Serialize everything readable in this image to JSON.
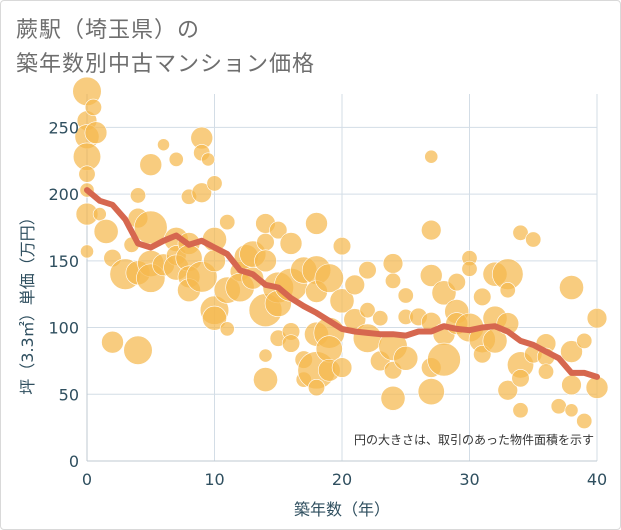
{
  "header": {
    "title_line1": "蕨駅（埼玉県）の",
    "title_line2": "築年数別中古マンション価格"
  },
  "colors": {
    "bubble": "#f5b84e",
    "trend_line": "#d6674f",
    "grid": "#d3dde6",
    "axis_text": "#2f4f5f"
  },
  "chart_data": {
    "type": "scatter",
    "title": "蕨駅（埼玉県）の築年数別中古マンション価格",
    "xlabel": "築年数（年）",
    "ylabel": "坪（3.3㎡）単価（万円）",
    "xlim": [
      0,
      40
    ],
    "ylim": [
      0,
      275
    ],
    "x_ticks": [
      "0",
      "10",
      "20",
      "30",
      "40"
    ],
    "y_ticks": [
      "0",
      "50",
      "100",
      "150",
      "200",
      "250"
    ],
    "grid": true,
    "annotation": "円の大きさは、取引のあった物件面積を示す",
    "trend": {
      "x": [
        0,
        1,
        2,
        3,
        4,
        5,
        6,
        7,
        8,
        9,
        10,
        11,
        12,
        13,
        14,
        15,
        16,
        17,
        18,
        19,
        20,
        21,
        22,
        23,
        24,
        25,
        26,
        27,
        28,
        29,
        30,
        31,
        32,
        33,
        34,
        35,
        36,
        37,
        38,
        39,
        40
      ],
      "y": [
        203,
        195,
        192,
        181,
        163,
        160,
        165,
        169,
        162,
        165,
        160,
        155,
        143,
        140,
        132,
        130,
        122,
        116,
        111,
        105,
        99,
        97,
        96,
        95,
        95,
        94,
        97,
        97,
        101,
        99,
        98,
        100,
        101,
        97,
        90,
        87,
        82,
        77,
        66,
        66,
        63
      ]
    },
    "points": [
      {
        "x": 0,
        "y": 277,
        "s": 2.6
      },
      {
        "x": 0,
        "y": 255,
        "s": 1.8
      },
      {
        "x": 0,
        "y": 243,
        "s": 2.2
      },
      {
        "x": 0,
        "y": 228,
        "s": 2.5
      },
      {
        "x": 0,
        "y": 215,
        "s": 1.5
      },
      {
        "x": 0,
        "y": 203,
        "s": 1.3
      },
      {
        "x": 0,
        "y": 185,
        "s": 2.0
      },
      {
        "x": 0,
        "y": 157,
        "s": 1.2
      },
      {
        "x": 0.5,
        "y": 265,
        "s": 1.5
      },
      {
        "x": 0.7,
        "y": 246,
        "s": 2.0
      },
      {
        "x": 1,
        "y": 185,
        "s": 1.2
      },
      {
        "x": 1.5,
        "y": 172,
        "s": 2.2
      },
      {
        "x": 2,
        "y": 152,
        "s": 1.6
      },
      {
        "x": 2,
        "y": 89,
        "s": 2.0
      },
      {
        "x": 3,
        "y": 140,
        "s": 2.8
      },
      {
        "x": 3.5,
        "y": 162,
        "s": 1.4
      },
      {
        "x": 4,
        "y": 182,
        "s": 1.8
      },
      {
        "x": 4,
        "y": 199,
        "s": 1.4
      },
      {
        "x": 4,
        "y": 141,
        "s": 2.2
      },
      {
        "x": 4,
        "y": 83,
        "s": 2.6
      },
      {
        "x": 5,
        "y": 222,
        "s": 2.0
      },
      {
        "x": 5,
        "y": 175,
        "s": 3.0
      },
      {
        "x": 5,
        "y": 148,
        "s": 2.4
      },
      {
        "x": 5,
        "y": 137,
        "s": 2.6
      },
      {
        "x": 6,
        "y": 237,
        "s": 1.1
      },
      {
        "x": 6,
        "y": 147,
        "s": 2.0
      },
      {
        "x": 7,
        "y": 226,
        "s": 1.3
      },
      {
        "x": 7,
        "y": 166,
        "s": 2.2
      },
      {
        "x": 7,
        "y": 154,
        "s": 1.8
      },
      {
        "x": 7,
        "y": 145,
        "s": 2.3
      },
      {
        "x": 8,
        "y": 198,
        "s": 1.4
      },
      {
        "x": 8,
        "y": 163,
        "s": 2.0
      },
      {
        "x": 8,
        "y": 152,
        "s": 2.4
      },
      {
        "x": 8,
        "y": 138,
        "s": 2.0
      },
      {
        "x": 8,
        "y": 128,
        "s": 2.1
      },
      {
        "x": 9,
        "y": 242,
        "s": 2.0
      },
      {
        "x": 9,
        "y": 231,
        "s": 1.5
      },
      {
        "x": 9,
        "y": 201,
        "s": 1.8
      },
      {
        "x": 9,
        "y": 138,
        "s": 2.8
      },
      {
        "x": 9.5,
        "y": 226,
        "s": 1.2
      },
      {
        "x": 10,
        "y": 208,
        "s": 1.4
      },
      {
        "x": 10,
        "y": 166,
        "s": 2.2
      },
      {
        "x": 10,
        "y": 150,
        "s": 2.0
      },
      {
        "x": 10,
        "y": 113,
        "s": 2.6
      },
      {
        "x": 10,
        "y": 107,
        "s": 2.2
      },
      {
        "x": 11,
        "y": 179,
        "s": 1.4
      },
      {
        "x": 11,
        "y": 128,
        "s": 2.4
      },
      {
        "x": 11,
        "y": 99,
        "s": 1.3
      },
      {
        "x": 12,
        "y": 142,
        "s": 1.8
      },
      {
        "x": 12,
        "y": 130,
        "s": 2.6
      },
      {
        "x": 12.5,
        "y": 153,
        "s": 2.2
      },
      {
        "x": 13,
        "y": 155,
        "s": 2.4
      },
      {
        "x": 13,
        "y": 137,
        "s": 2.0
      },
      {
        "x": 14,
        "y": 178,
        "s": 1.8
      },
      {
        "x": 14,
        "y": 164,
        "s": 1.6
      },
      {
        "x": 14,
        "y": 150,
        "s": 2.0
      },
      {
        "x": 14,
        "y": 113,
        "s": 3.0
      },
      {
        "x": 14,
        "y": 79,
        "s": 1.2
      },
      {
        "x": 14,
        "y": 61,
        "s": 2.2
      },
      {
        "x": 15,
        "y": 173,
        "s": 1.6
      },
      {
        "x": 15,
        "y": 130,
        "s": 2.8
      },
      {
        "x": 15,
        "y": 118,
        "s": 2.4
      },
      {
        "x": 15,
        "y": 92,
        "s": 1.5
      },
      {
        "x": 16,
        "y": 163,
        "s": 2.0
      },
      {
        "x": 16,
        "y": 132,
        "s": 3.0
      },
      {
        "x": 16,
        "y": 97,
        "s": 1.6
      },
      {
        "x": 16,
        "y": 88,
        "s": 1.6
      },
      {
        "x": 17,
        "y": 143,
        "s": 2.4
      },
      {
        "x": 17,
        "y": 76,
        "s": 1.6
      },
      {
        "x": 17,
        "y": 61,
        "s": 1.4
      },
      {
        "x": 18,
        "y": 178,
        "s": 2.0
      },
      {
        "x": 18,
        "y": 143,
        "s": 2.6
      },
      {
        "x": 18,
        "y": 127,
        "s": 2.0
      },
      {
        "x": 18,
        "y": 95,
        "s": 2.2
      },
      {
        "x": 18,
        "y": 68,
        "s": 3.4
      },
      {
        "x": 18,
        "y": 55,
        "s": 1.5
      },
      {
        "x": 19,
        "y": 137,
        "s": 2.6
      },
      {
        "x": 19,
        "y": 96,
        "s": 2.8
      },
      {
        "x": 19,
        "y": 84,
        "s": 2.4
      },
      {
        "x": 19,
        "y": 68,
        "s": 2.0
      },
      {
        "x": 20,
        "y": 161,
        "s": 1.6
      },
      {
        "x": 20,
        "y": 120,
        "s": 2.2
      },
      {
        "x": 20,
        "y": 70,
        "s": 1.8
      },
      {
        "x": 21,
        "y": 132,
        "s": 1.8
      },
      {
        "x": 21,
        "y": 106,
        "s": 2.0
      },
      {
        "x": 22,
        "y": 143,
        "s": 1.6
      },
      {
        "x": 22,
        "y": 113,
        "s": 1.4
      },
      {
        "x": 22,
        "y": 92,
        "s": 2.6
      },
      {
        "x": 23,
        "y": 107,
        "s": 1.4
      },
      {
        "x": 23,
        "y": 75,
        "s": 1.8
      },
      {
        "x": 24,
        "y": 148,
        "s": 1.8
      },
      {
        "x": 24,
        "y": 135,
        "s": 1.4
      },
      {
        "x": 24,
        "y": 86,
        "s": 2.6
      },
      {
        "x": 24,
        "y": 68,
        "s": 1.6
      },
      {
        "x": 24,
        "y": 47,
        "s": 2.2
      },
      {
        "x": 25,
        "y": 124,
        "s": 1.4
      },
      {
        "x": 25,
        "y": 108,
        "s": 1.4
      },
      {
        "x": 25,
        "y": 77,
        "s": 2.2
      },
      {
        "x": 26,
        "y": 108,
        "s": 1.6
      },
      {
        "x": 27,
        "y": 228,
        "s": 1.2
      },
      {
        "x": 27,
        "y": 173,
        "s": 1.8
      },
      {
        "x": 27,
        "y": 139,
        "s": 2.0
      },
      {
        "x": 27,
        "y": 104,
        "s": 1.8
      },
      {
        "x": 27,
        "y": 70,
        "s": 1.8
      },
      {
        "x": 27,
        "y": 52,
        "s": 2.4
      },
      {
        "x": 28,
        "y": 126,
        "s": 2.2
      },
      {
        "x": 28,
        "y": 95,
        "s": 2.0
      },
      {
        "x": 28,
        "y": 76,
        "s": 3.0
      },
      {
        "x": 29,
        "y": 134,
        "s": 1.6
      },
      {
        "x": 29,
        "y": 112,
        "s": 2.2
      },
      {
        "x": 29,
        "y": 103,
        "s": 2.0
      },
      {
        "x": 30,
        "y": 152,
        "s": 1.4
      },
      {
        "x": 30,
        "y": 144,
        "s": 1.4
      },
      {
        "x": 30,
        "y": 100,
        "s": 2.6
      },
      {
        "x": 31,
        "y": 123,
        "s": 1.6
      },
      {
        "x": 31,
        "y": 91,
        "s": 2.4
      },
      {
        "x": 31,
        "y": 80,
        "s": 1.6
      },
      {
        "x": 32,
        "y": 140,
        "s": 2.2
      },
      {
        "x": 32,
        "y": 107,
        "s": 2.2
      },
      {
        "x": 32,
        "y": 90,
        "s": 2.2
      },
      {
        "x": 33,
        "y": 140,
        "s": 2.8
      },
      {
        "x": 33,
        "y": 128,
        "s": 1.4
      },
      {
        "x": 33,
        "y": 103,
        "s": 2.0
      },
      {
        "x": 33,
        "y": 53,
        "s": 1.8
      },
      {
        "x": 34,
        "y": 171,
        "s": 1.4
      },
      {
        "x": 34,
        "y": 72,
        "s": 2.4
      },
      {
        "x": 34,
        "y": 62,
        "s": 1.6
      },
      {
        "x": 34,
        "y": 38,
        "s": 1.4
      },
      {
        "x": 35,
        "y": 166,
        "s": 1.4
      },
      {
        "x": 35,
        "y": 80,
        "s": 1.6
      },
      {
        "x": 36,
        "y": 88,
        "s": 1.8
      },
      {
        "x": 36,
        "y": 78,
        "s": 1.6
      },
      {
        "x": 36,
        "y": 67,
        "s": 1.4
      },
      {
        "x": 37,
        "y": 41,
        "s": 1.4
      },
      {
        "x": 38,
        "y": 130,
        "s": 2.2
      },
      {
        "x": 38,
        "y": 82,
        "s": 2.0
      },
      {
        "x": 38,
        "y": 57,
        "s": 1.8
      },
      {
        "x": 38,
        "y": 38,
        "s": 1.2
      },
      {
        "x": 39,
        "y": 90,
        "s": 1.4
      },
      {
        "x": 39,
        "y": 30,
        "s": 1.4
      },
      {
        "x": 40,
        "y": 107,
        "s": 1.8
      },
      {
        "x": 40,
        "y": 55,
        "s": 2.0
      }
    ]
  }
}
